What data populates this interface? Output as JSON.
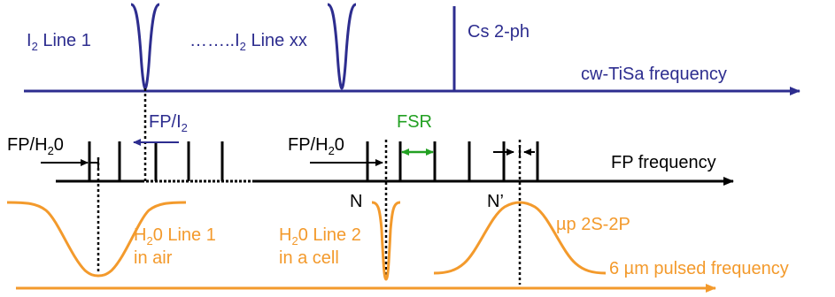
{
  "colors": {
    "blue": "#2d2d8f",
    "black": "#000000",
    "green": "#22a022",
    "orange": "#f39a2c"
  },
  "labels": {
    "i2_line1": {
      "main": "I",
      "sub": "2",
      "rest": " Line 1"
    },
    "i2_linexx": {
      "pre": "……..I",
      "sub": "2",
      "rest": " Line xx"
    },
    "cs_2ph": "Cs 2-ph",
    "cw_tisa": "cw-TiSa frequency",
    "fp_i2": {
      "main": "FP/I",
      "sub": "2"
    },
    "fp_h2o_left": {
      "main": "FP/H",
      "sub": "2",
      "rest": "0"
    },
    "fp_h2o_mid": {
      "main": "FP/H",
      "sub": "2",
      "rest": "0"
    },
    "fsr": "FSR",
    "fp_frequency": "FP frequency",
    "n": "N",
    "n_prime": "N’",
    "h2o_line1": {
      "main": "H",
      "sub": "2",
      "rest": "0 Line 1",
      "line2": "in air"
    },
    "h2o_line2": {
      "main": "H",
      "sub": "2",
      "rest": "0 Line 2",
      "line2": "in a cell"
    },
    "mup": "µp 2S-2P",
    "pulsed": "6 µm pulsed frequency"
  }
}
